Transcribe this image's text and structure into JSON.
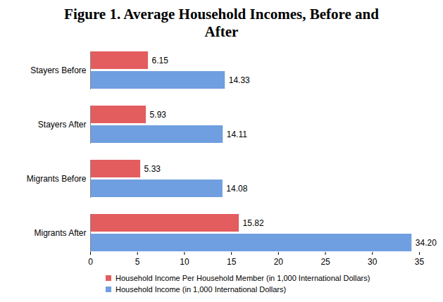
{
  "chart_data": {
    "type": "bar",
    "title": "Figure 1. Average Household Incomes, Before and After",
    "orientation": "horizontal",
    "categories": [
      "Stayers Before",
      "Stayers After",
      "Migrants Before",
      "Migrants After"
    ],
    "series": [
      {
        "name": "Household Income Per Household Member (in 1,000 International Dollars)",
        "color": "#e35d5f",
        "values": [
          6.15,
          5.93,
          5.33,
          15.82
        ],
        "value_labels": [
          "6.15",
          "5.93",
          "5.33",
          "15.82"
        ]
      },
      {
        "name": "Household Income (in 1,000 International Dollars)",
        "color": "#6f9fe0",
        "values": [
          14.33,
          14.11,
          14.08,
          34.2
        ],
        "value_labels": [
          "14.33",
          "14.11",
          "14.08",
          "34.20"
        ]
      }
    ],
    "xlim": [
      0,
      35
    ],
    "xticks": [
      0,
      5,
      10,
      15,
      20,
      25,
      30,
      35
    ],
    "grid": false,
    "data_labels": true,
    "legend": "bottom"
  }
}
